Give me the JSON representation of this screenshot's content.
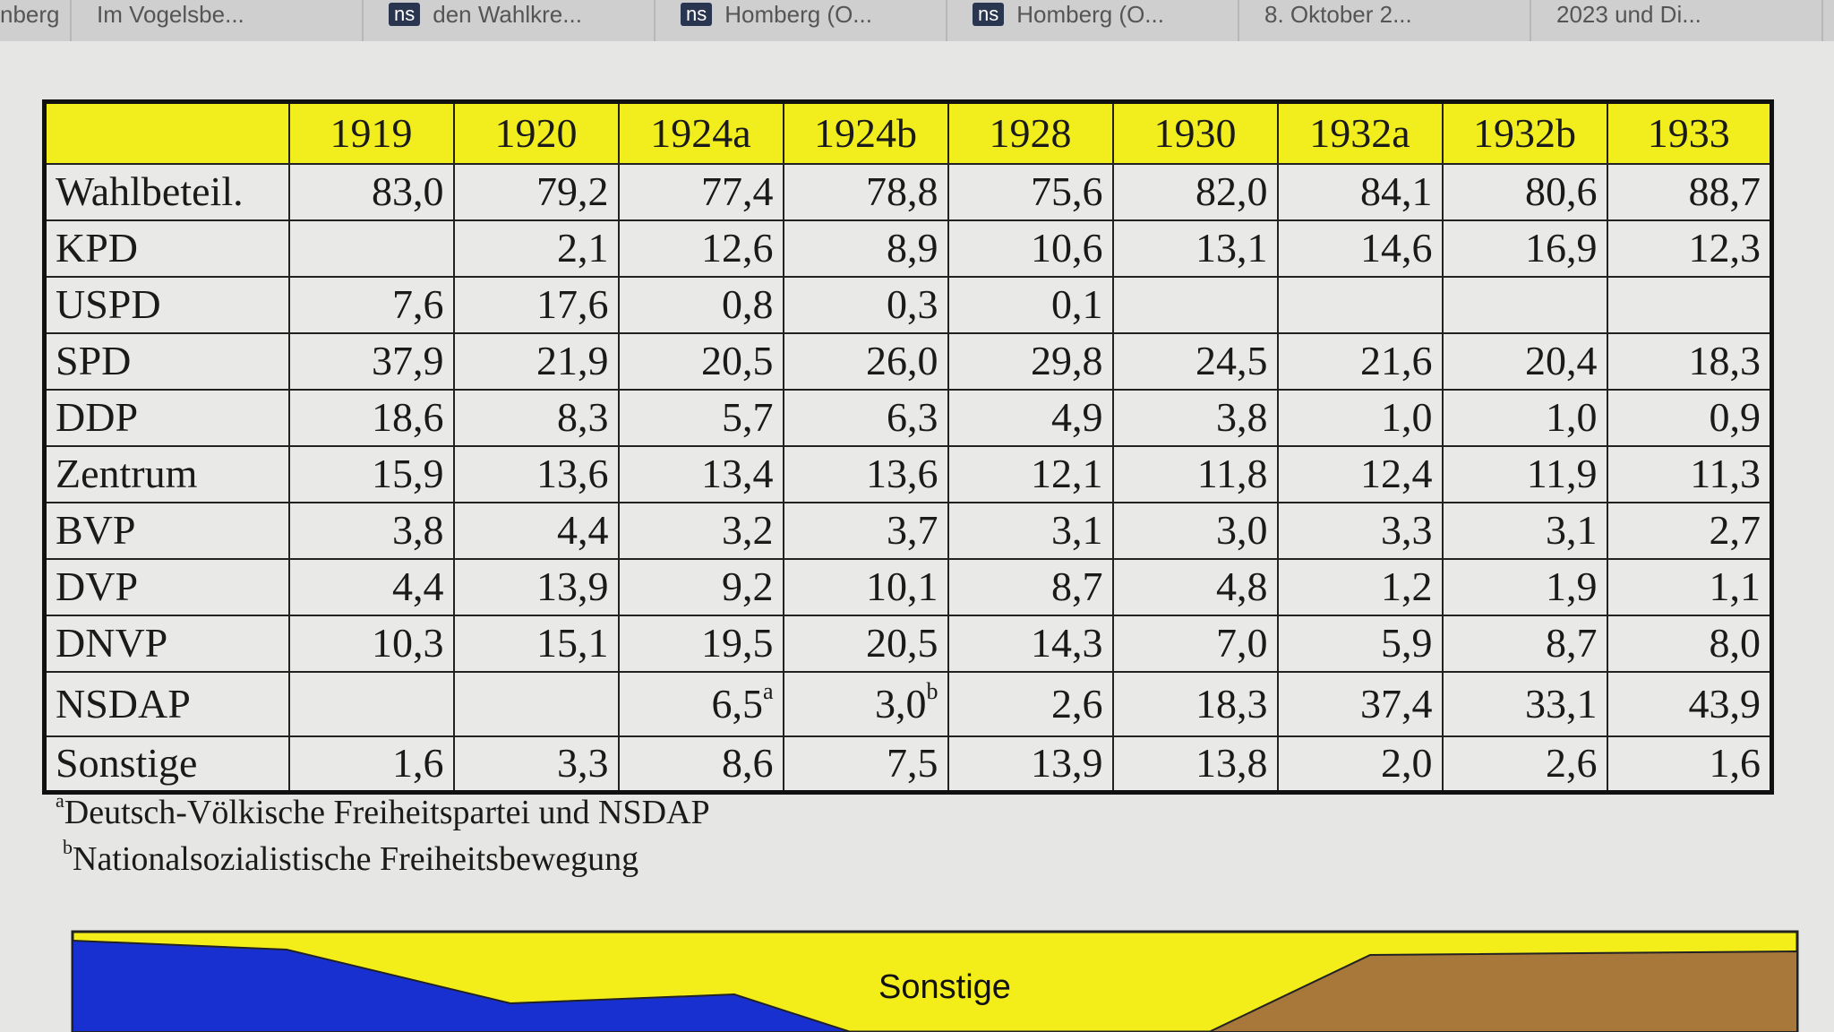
{
  "tabs": [
    {
      "label": "nberg"
    },
    {
      "label": "Im Vogelsbe..."
    },
    {
      "icon": "ns",
      "label": "den Wahlkre..."
    },
    {
      "icon": "ns",
      "label": "Homberg (O..."
    },
    {
      "icon": "ns",
      "label": "Homberg (O..."
    },
    {
      "label": "8. Oktober 2..."
    },
    {
      "label": "2023 und Di..."
    }
  ],
  "table": {
    "columns": [
      "1919",
      "1920",
      "1924a",
      "1924b",
      "1928",
      "1930",
      "1932a",
      "1932b",
      "1933"
    ],
    "rows": [
      {
        "label": "Wahlbeteil.",
        "cells": [
          "83,0",
          "79,2",
          "77,4",
          "78,8",
          "75,6",
          "82,0",
          "84,1",
          "80,6",
          "88,7"
        ]
      },
      {
        "label": "KPD",
        "cells": [
          null,
          "2,1",
          "12,6",
          "8,9",
          "10,6",
          "13,1",
          "14,6",
          "16,9",
          "12,3"
        ]
      },
      {
        "label": "USPD",
        "cells": [
          "7,6",
          "17,6",
          "0,8",
          "0,3",
          "0,1",
          null,
          null,
          null,
          null
        ]
      },
      {
        "label": "SPD",
        "cells": [
          "37,9",
          "21,9",
          "20,5",
          "26,0",
          "29,8",
          "24,5",
          "21,6",
          "20,4",
          "18,3"
        ]
      },
      {
        "label": "DDP",
        "cells": [
          "18,6",
          "8,3",
          "5,7",
          "6,3",
          "4,9",
          "3,8",
          "1,0",
          "1,0",
          "0,9"
        ]
      },
      {
        "label": "Zentrum",
        "cells": [
          "15,9",
          "13,6",
          "13,4",
          "13,6",
          "12,1",
          "11,8",
          "12,4",
          "11,9",
          "11,3"
        ]
      },
      {
        "label": "BVP",
        "cells": [
          "3,8",
          "4,4",
          "3,2",
          "3,7",
          "3,1",
          "3,0",
          "3,3",
          "3,1",
          "2,7"
        ]
      },
      {
        "label": "DVP",
        "cells": [
          "4,4",
          "13,9",
          "9,2",
          "10,1",
          "8,7",
          "4,8",
          "1,2",
          "1,9",
          "1,1"
        ]
      },
      {
        "label": "DNVP",
        "cells": [
          "10,3",
          "15,1",
          "19,5",
          "20,5",
          "14,3",
          "7,0",
          "5,9",
          "8,7",
          "8,0"
        ]
      },
      {
        "label": "NSDAP",
        "cells": [
          null,
          null,
          {
            "text": "6,5",
            "sup": "a"
          },
          {
            "text": "3,0",
            "sup": "b"
          },
          "2,6",
          "18,3",
          "37,4",
          "33,1",
          "43,9"
        ]
      },
      {
        "label": "Sonstige",
        "cells": [
          "1,6",
          "3,3",
          "8,6",
          "7,5",
          "13,9",
          "13,8",
          "2,0",
          "2,6",
          "1,6"
        ]
      }
    ]
  },
  "footnotes": [
    {
      "mark": "a",
      "text": "Deutsch-Völkische Freiheitspartei und NSDAP"
    },
    {
      "mark": "b",
      "text": "Nationalsozialistische Freiheitsbewegung"
    }
  ],
  "chart": {
    "label": "Sonstige"
  }
}
